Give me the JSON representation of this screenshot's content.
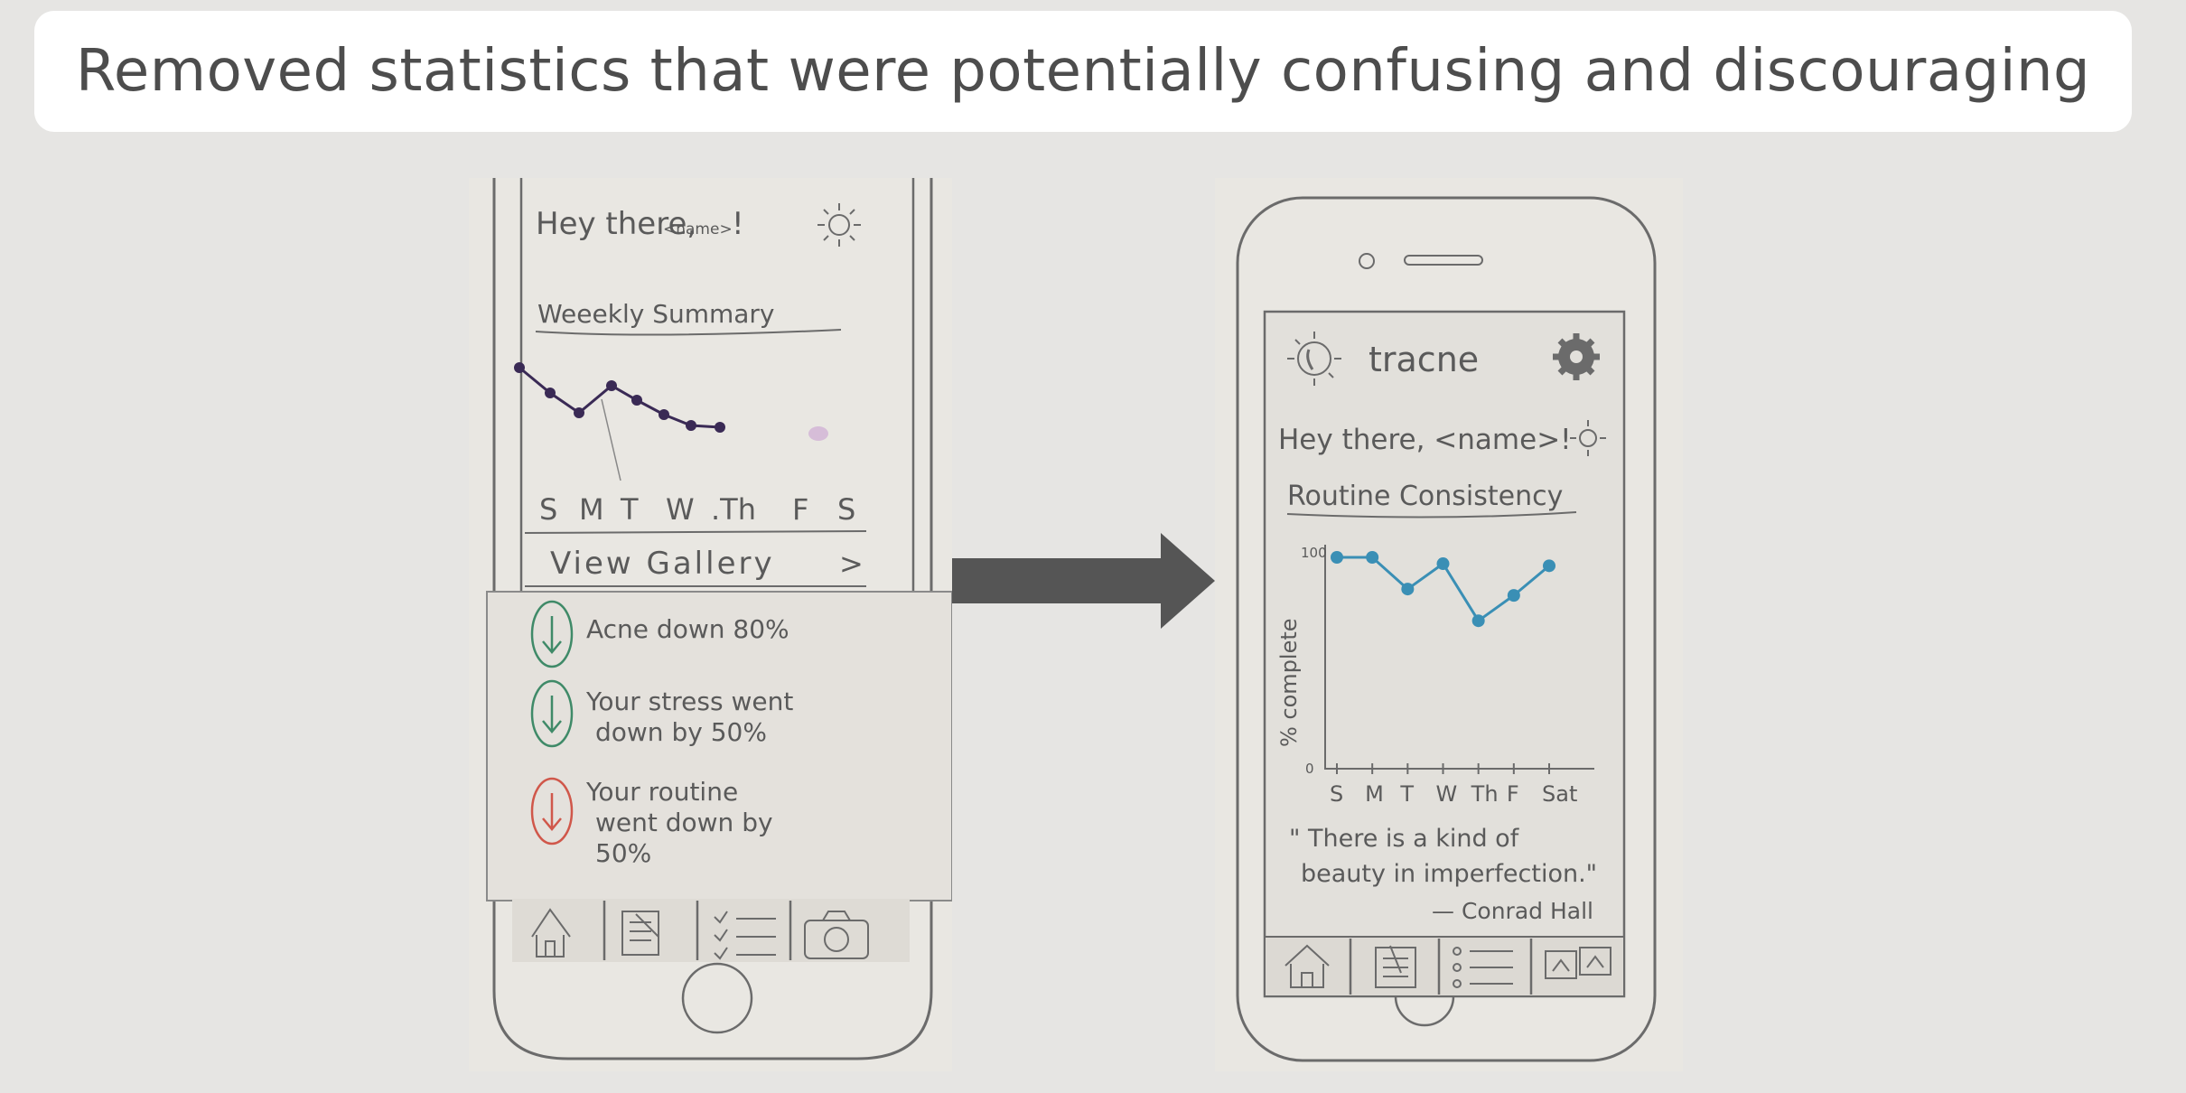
{
  "title": "Removed statistics that were potentially confusing and discouraging",
  "before": {
    "greeting": "Hey there,",
    "name_placeholder": "<name>",
    "greeting_end": "!",
    "section_title": "Weeekly Summary",
    "days": [
      "S",
      "M",
      "T",
      "W",
      ".Th",
      "F",
      "S"
    ],
    "gallery_link": "View Gallery",
    "gallery_chevron": ">",
    "stats": [
      {
        "lines": [
          "Acne down 80%"
        ],
        "direction": "down",
        "color": "#3f8a68"
      },
      {
        "lines": [
          "Your stress went",
          "down by 50%"
        ],
        "direction": "down",
        "color": "#3f8a68"
      },
      {
        "lines": [
          "Your routine",
          "went down by",
          "50%"
        ],
        "direction": "down",
        "color": "#d0574a"
      }
    ],
    "tab_icons": [
      "home-icon",
      "journal-icon",
      "checklist-icon",
      "camera-icon"
    ],
    "line_color": "#3a2a55",
    "chart_data": {
      "type": "line",
      "categories": [
        "S",
        "M",
        "T",
        "W",
        ".Th",
        "F",
        "S"
      ],
      "title": "Weeekly Summary"
    }
  },
  "after": {
    "app_name": "tracne",
    "greeting": "Hey there, <name>!",
    "section_title": "Routine Consistency",
    "y_axis_label": "% complete",
    "y_max_label": "100",
    "y_min_label": "0",
    "days": [
      "S",
      "M",
      "T",
      "W",
      "Th",
      "F",
      "Sat"
    ],
    "quote_lines": [
      "\" There is a kind of",
      "beauty in imperfection.\""
    ],
    "quote_author": "— Conrad Hall",
    "tab_icons": [
      "home-icon",
      "journal-icon",
      "list-icon",
      "gallery-icon"
    ],
    "line_color": "#3a8fb5",
    "chart_data": {
      "type": "line",
      "title": "Routine Consistency",
      "ylabel": "% complete",
      "ylim": [
        0,
        100
      ],
      "categories": [
        "S",
        "M",
        "T",
        "W",
        "Th",
        "F",
        "Sat"
      ],
      "values": [
        100,
        100,
        85,
        97,
        70,
        82,
        96
      ]
    }
  }
}
